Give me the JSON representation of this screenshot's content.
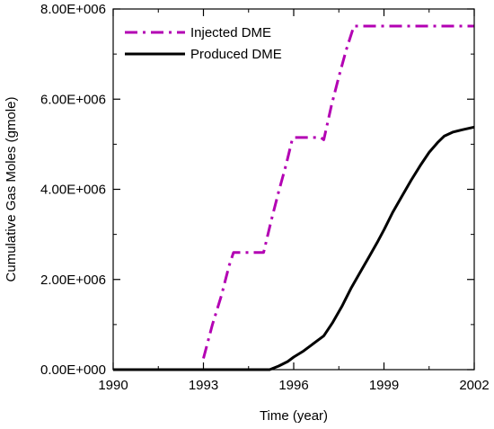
{
  "chart_data": {
    "type": "line",
    "title": "",
    "xlabel": "Time (year)",
    "ylabel": "Cumulative Gas Moles (gmole)",
    "xlim": [
      1990,
      2002
    ],
    "ylim": [
      0,
      8000000
    ],
    "xticks": [
      1990,
      1993,
      1996,
      1999,
      2002
    ],
    "xtick_labels": [
      "1990",
      "1993",
      "1996",
      "1999",
      "2002"
    ],
    "yticks": [
      0,
      2000000,
      4000000,
      6000000,
      8000000
    ],
    "ytick_labels": [
      "0.00E+000",
      "2.00E+006",
      "4.00E+006",
      "6.00E+006",
      "8.00E+006"
    ],
    "grid": false,
    "legend_position": "top-left",
    "series": [
      {
        "name": "Injected DME",
        "color": "#b300b3",
        "style": "dash-dot",
        "x": [
          1993.0,
          1993.3,
          1993.6,
          1993.85,
          1994.0,
          1994.3,
          1994.6,
          1994.85,
          1995.0,
          1995.25,
          1995.5,
          1995.75,
          1995.95,
          1996.0,
          1996.5,
          1996.9,
          1997.0,
          1997.25,
          1997.5,
          1997.75,
          1998.0,
          2002.0
        ],
        "y": [
          250000,
          1000000,
          1650000,
          2300000,
          2600000,
          2600000,
          2600000,
          2600000,
          2600000,
          3300000,
          3950000,
          4550000,
          5100000,
          5150000,
          5150000,
          5150000,
          5100000,
          5850000,
          6500000,
          7100000,
          7620000,
          7620000
        ]
      },
      {
        "name": "Produced DME",
        "color": "#000000",
        "style": "solid",
        "x": [
          1990.0,
          1993.0,
          1995.0,
          1995.2,
          1995.5,
          1995.8,
          1996.0,
          1996.3,
          1996.6,
          1997.0,
          1997.3,
          1997.6,
          1997.9,
          1998.2,
          1998.5,
          1998.8,
          1999.0,
          1999.3,
          1999.6,
          1999.9,
          2000.2,
          2000.5,
          2000.8,
          2001.0,
          2001.3,
          2001.6,
          2002.0
        ],
        "y": [
          0,
          0,
          0,
          0,
          80000,
          180000,
          280000,
          400000,
          550000,
          750000,
          1050000,
          1400000,
          1800000,
          2150000,
          2500000,
          2850000,
          3100000,
          3500000,
          3850000,
          4200000,
          4520000,
          4820000,
          5050000,
          5180000,
          5270000,
          5320000,
          5380000
        ]
      }
    ]
  }
}
